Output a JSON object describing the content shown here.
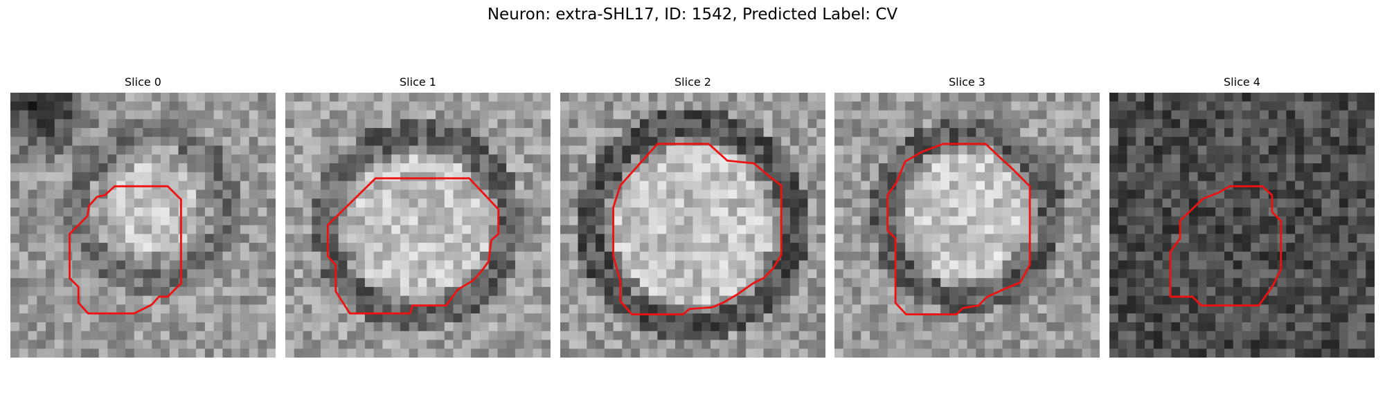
{
  "title": "Neuron: extra-SHL17, ID: 1542, Predicted Label: CV",
  "panels": [
    {
      "title": "Slice 0"
    },
    {
      "title": "Slice 1"
    },
    {
      "title": "Slice 2"
    },
    {
      "title": "Slice 3"
    },
    {
      "title": "Slice 4"
    }
  ]
}
